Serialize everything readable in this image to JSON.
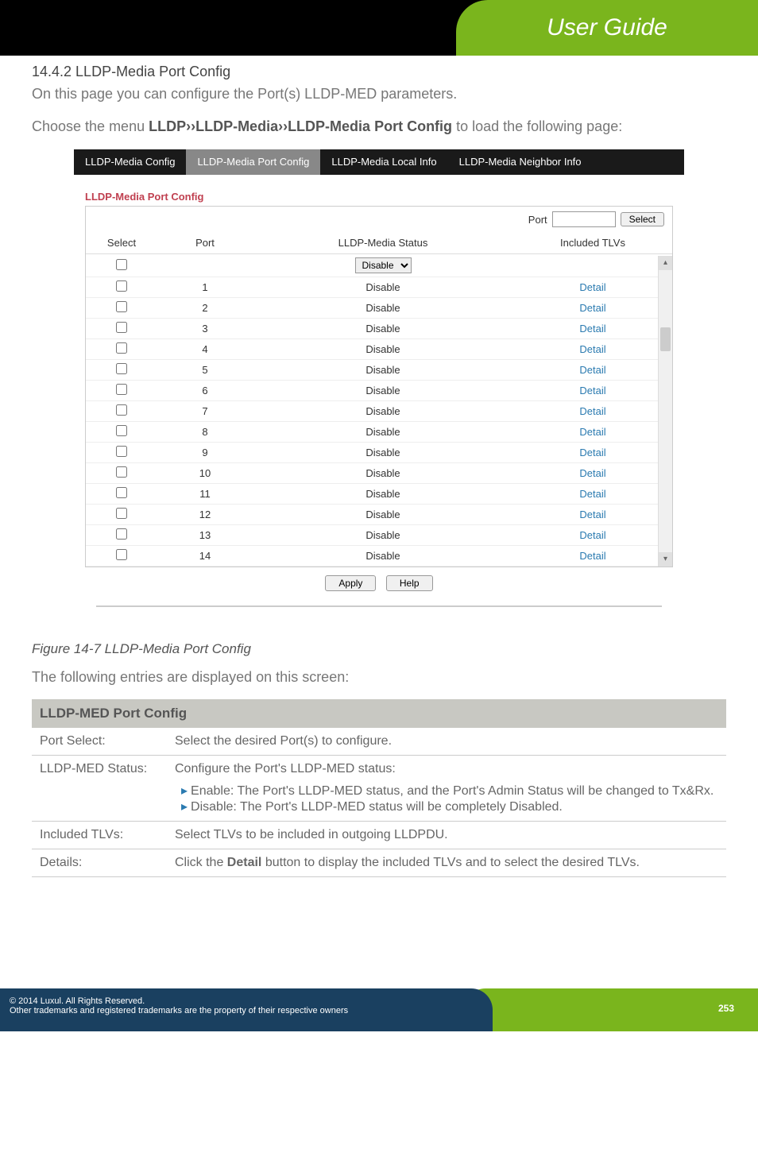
{
  "header": {
    "title": "User Guide"
  },
  "section": {
    "number": "14.4.2 LLDP-Media Port Config",
    "intro": "On this page you can configure the Port(s) LLDP-MED parameters.",
    "choose1": "Choose the menu ",
    "choose_bold": "LLDP››LLDP-Media››LLDP-Media Port Config",
    "choose2": " to load the following page:"
  },
  "tabs": {
    "t1": "LLDP-Media Config",
    "t2": "LLDP-Media Port Config",
    "t3": "LLDP-Media Local Info",
    "t4": "LLDP-Media Neighbor Info"
  },
  "panel": {
    "title": "LLDP-Media Port Config",
    "port_label": "Port",
    "select_btn": "Select",
    "cols": {
      "select": "Select",
      "port": "Port",
      "status": "LLDP-Media Status",
      "tlvs": "Included TLVs"
    },
    "dropdown": "Disable",
    "rows": [
      {
        "port": "1",
        "status": "Disable",
        "tlv": "Detail"
      },
      {
        "port": "2",
        "status": "Disable",
        "tlv": "Detail"
      },
      {
        "port": "3",
        "status": "Disable",
        "tlv": "Detail"
      },
      {
        "port": "4",
        "status": "Disable",
        "tlv": "Detail"
      },
      {
        "port": "5",
        "status": "Disable",
        "tlv": "Detail"
      },
      {
        "port": "6",
        "status": "Disable",
        "tlv": "Detail"
      },
      {
        "port": "7",
        "status": "Disable",
        "tlv": "Detail"
      },
      {
        "port": "8",
        "status": "Disable",
        "tlv": "Detail"
      },
      {
        "port": "9",
        "status": "Disable",
        "tlv": "Detail"
      },
      {
        "port": "10",
        "status": "Disable",
        "tlv": "Detail"
      },
      {
        "port": "11",
        "status": "Disable",
        "tlv": "Detail"
      },
      {
        "port": "12",
        "status": "Disable",
        "tlv": "Detail"
      },
      {
        "port": "13",
        "status": "Disable",
        "tlv": "Detail"
      },
      {
        "port": "14",
        "status": "Disable",
        "tlv": "Detail"
      }
    ],
    "apply": "Apply",
    "help": "Help"
  },
  "figure": {
    "caption": "Figure 14-7 LLDP-Media Port Config",
    "entries": "The following entries are displayed on this screen:"
  },
  "desc": {
    "header": "LLDP-MED Port Config",
    "r1k": "Port Select:",
    "r1v": "Select the desired Port(s) to configure.",
    "r2k": "LLDP-MED Status:",
    "r2v1": "Configure the Port's LLDP-MED status:",
    "r2b1": "Enable: The Port's LLDP-MED status, and the Port's Admin Status will be changed to Tx&Rx.",
    "r2b2": "Disable: The Port's LLDP-MED status will be completely Disabled.",
    "r3k": "Included TLVs:",
    "r3v": "Select TLVs to be included in outgoing LLDPDU.",
    "r4k": "Details:",
    "r4v1": "Click the ",
    "r4vb": "Detail",
    "r4v2": " button to display the included TLVs and to select the desired TLVs."
  },
  "footer": {
    "l1": "© 2014  Luxul. All Rights Reserved.",
    "l2": "Other trademarks and registered trademarks are the property of their respective owners",
    "page": "253"
  }
}
